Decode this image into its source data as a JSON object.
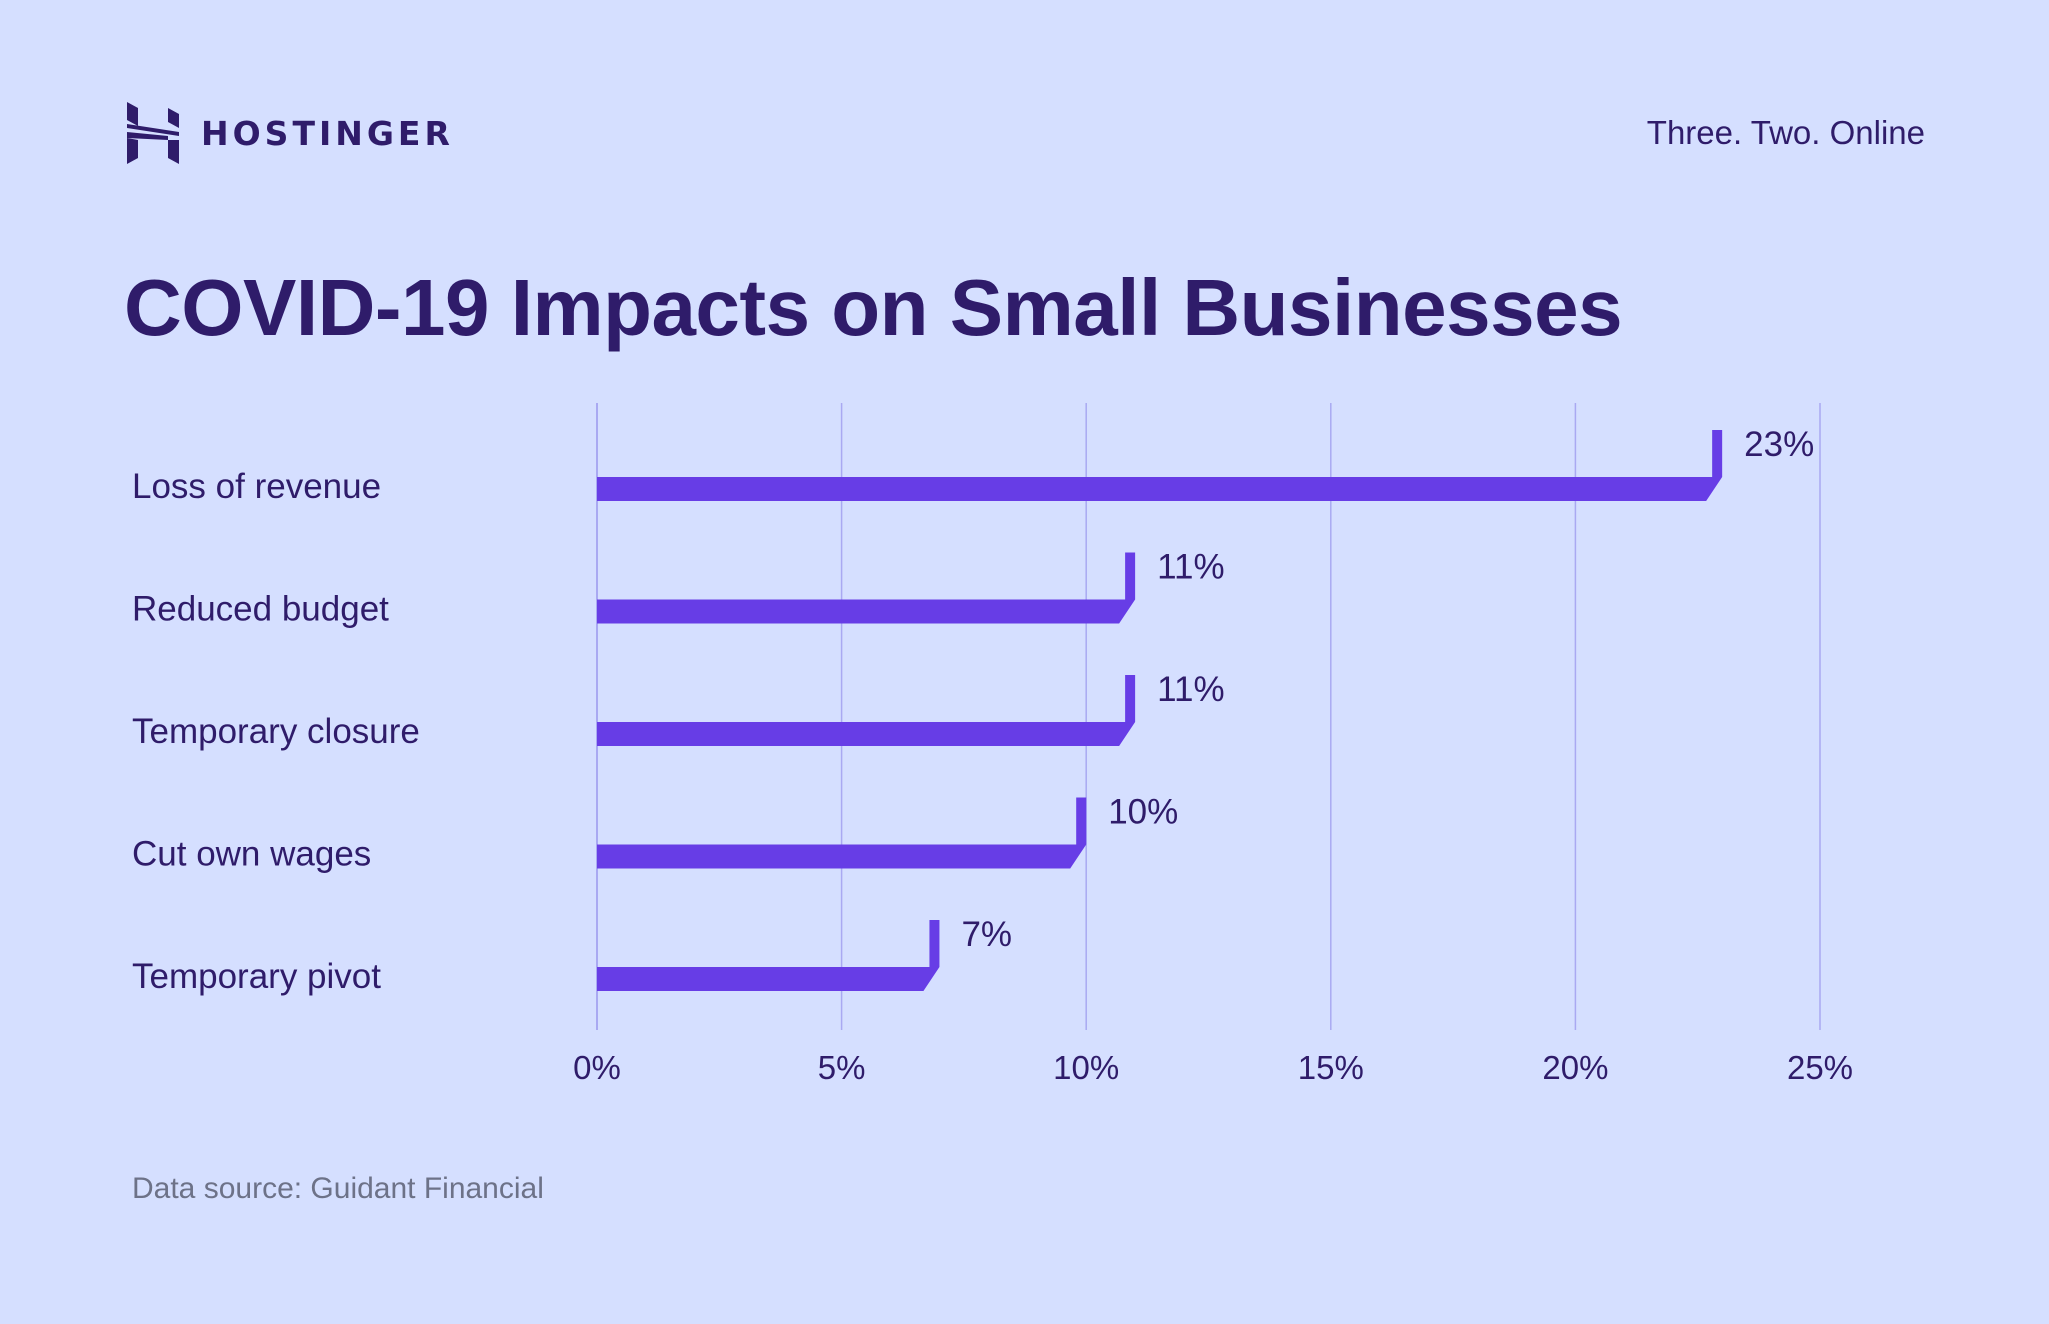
{
  "header": {
    "brand": "HOSTINGER",
    "brand_icon": "hostinger-h-logo",
    "tagline": "Three. Two. Online"
  },
  "footer": {
    "source": "Data source: Guidant Financial"
  },
  "colors": {
    "background": "#d5dfff",
    "bar": "#673de6",
    "text": "#2f1c6a",
    "grid": "#a9a9f2",
    "source_text": "#6d7288"
  },
  "chart_data": {
    "type": "bar",
    "orientation": "horizontal",
    "title": "COVID-19 Impacts on Small Businesses",
    "xlabel": "",
    "ylabel": "",
    "categories": [
      "Loss of revenue",
      "Reduced budget",
      "Temporary closure",
      "Cut own wages",
      "Temporary pivot"
    ],
    "values": [
      23,
      11,
      11,
      10,
      7
    ],
    "value_labels": [
      "23%",
      "11%",
      "11%",
      "10%",
      "7%"
    ],
    "xlim": [
      0,
      25
    ],
    "xticks": [
      0,
      5,
      10,
      15,
      20,
      25
    ],
    "xtick_labels": [
      "0%",
      "5%",
      "10%",
      "15%",
      "20%",
      "25%"
    ],
    "grid": true,
    "legend": "none",
    "source": "Data source: Guidant Financial"
  }
}
